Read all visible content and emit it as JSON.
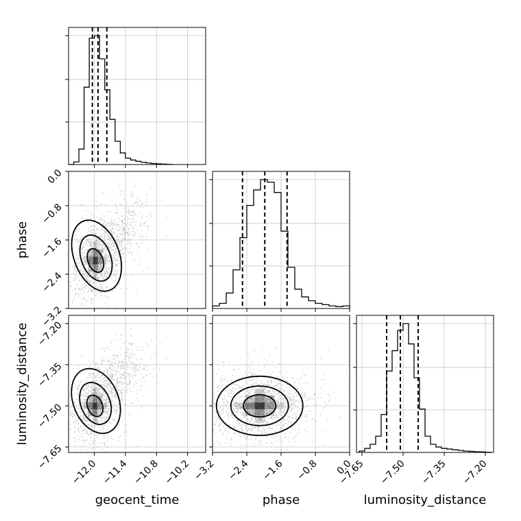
{
  "chart_data": [
    {
      "type": "histogram",
      "panel": "geocent_time-marginal",
      "xparam": "geocent_time",
      "xlim": [
        -12.5,
        -9.85
      ],
      "x_ticks": [
        -12.0,
        -11.4,
        -10.8,
        -10.2
      ],
      "bins": [
        -12.5,
        -12.4,
        -12.3,
        -12.2,
        -12.1,
        -12.0,
        -11.9,
        -11.8,
        -11.7,
        -11.6,
        -11.5,
        -11.4,
        -11.3,
        -11.2,
        -11.1,
        -11.0,
        -10.9,
        -10.8,
        -10.7,
        -10.6,
        -10.5
      ],
      "density": [
        0.0,
        0.02,
        0.12,
        0.6,
        0.98,
        1.0,
        0.82,
        0.58,
        0.35,
        0.18,
        0.09,
        0.05,
        0.035,
        0.025,
        0.018,
        0.012,
        0.008,
        0.005,
        0.003,
        0.001
      ],
      "quantiles": [
        -12.04,
        -11.93,
        -11.76
      ],
      "grid": true
    },
    {
      "type": "histogram",
      "panel": "phase-marginal",
      "xparam": "phase",
      "xlim": [
        -3.2,
        0.0
      ],
      "x_ticks": [
        -3.2,
        -2.4,
        -1.6,
        -0.8,
        0.0
      ],
      "x_tick_labels": [
        "−3.2",
        "−2.4",
        "−1.6",
        "−0.8",
        "0.0"
      ],
      "bins": [
        -3.2,
        -3.04,
        -2.88,
        -2.72,
        -2.56,
        -2.4,
        -2.24,
        -2.08,
        -1.92,
        -1.76,
        -1.6,
        -1.44,
        -1.28,
        -1.12,
        -0.96,
        -0.8,
        -0.64,
        -0.48,
        -0.32,
        -0.16,
        0.0
      ],
      "density": [
        0.02,
        0.04,
        0.12,
        0.3,
        0.55,
        0.8,
        0.92,
        1.0,
        0.98,
        0.9,
        0.6,
        0.32,
        0.15,
        0.09,
        0.06,
        0.04,
        0.03,
        0.02,
        0.015,
        0.02
      ],
      "quantiles": [
        -2.5,
        -1.98,
        -1.46
      ],
      "grid": true
    },
    {
      "type": "histogram",
      "panel": "luminosity_distance-marginal",
      "xparam": "luminosity_distance",
      "xlim": [
        -7.67,
        -7.17
      ],
      "x_ticks": [
        -7.65,
        -7.5,
        -7.35,
        -7.2
      ],
      "x_tick_labels": [
        "−7.65",
        "−7.50",
        "−7.35",
        "−7.20"
      ],
      "bins": [
        -7.66,
        -7.64,
        -7.62,
        -7.6,
        -7.58,
        -7.56,
        -7.54,
        -7.52,
        -7.5,
        -7.48,
        -7.46,
        -7.44,
        -7.42,
        -7.4,
        -7.38,
        -7.36,
        -7.34,
        -7.32,
        -7.3,
        -7.28,
        -7.26,
        -7.24,
        -7.22,
        -7.2,
        -7.18
      ],
      "density": [
        0.01,
        0.03,
        0.06,
        0.12,
        0.28,
        0.6,
        0.75,
        0.9,
        0.95,
        0.8,
        0.55,
        0.32,
        0.12,
        0.06,
        0.04,
        0.03,
        0.025,
        0.02,
        0.015,
        0.01,
        0.008,
        0.005,
        0.004,
        0.002
      ],
      "quantiles": [
        -7.56,
        -7.51,
        -7.445
      ],
      "grid": true
    },
    {
      "type": "scatter-density",
      "panel": "geocent_time-vs-phase",
      "xparam": "geocent_time",
      "yparam": "phase",
      "xlim": [
        -12.5,
        -9.85
      ],
      "ylim": [
        -3.2,
        0.0
      ],
      "center": [
        -11.98,
        -2.08
      ],
      "spread": [
        0.16,
        0.32
      ],
      "tail_towards": [
        -11.2,
        -1.1
      ],
      "contour_levels": 3,
      "grid": true
    },
    {
      "type": "scatter-density",
      "panel": "geocent_time-vs-luminosity_distance",
      "xparam": "geocent_time",
      "yparam": "luminosity_distance",
      "xlim": [
        -12.5,
        -9.85
      ],
      "ylim": [
        -7.67,
        -7.17
      ],
      "center": [
        -11.99,
        -7.5
      ],
      "spread": [
        0.16,
        0.045
      ],
      "tail_towards": [
        -11.2,
        -7.33
      ],
      "contour_levels": 3,
      "grid": true
    },
    {
      "type": "scatter-density",
      "panel": "phase-vs-luminosity_distance",
      "xparam": "phase",
      "yparam": "luminosity_distance",
      "xlim": [
        -3.2,
        0.0
      ],
      "ylim": [
        -7.67,
        -7.17
      ],
      "center": [
        -2.1,
        -7.5
      ],
      "spread": [
        0.42,
        0.045
      ],
      "contour_levels": 3,
      "grid": true
    }
  ],
  "axes": {
    "geocent_time": {
      "label": "geocent_time",
      "ticks": [
        -12.0,
        -11.4,
        -10.8,
        -10.2
      ],
      "tick_labels": [
        "−12.0",
        "−11.4",
        "−10.8",
        "−10.2"
      ]
    },
    "phase": {
      "label": "phase",
      "ticks_y": [
        0.0,
        -0.8,
        -1.6,
        -2.4,
        -3.2
      ],
      "tick_labels_y": [
        "0.0",
        "−0.8",
        "−1.6",
        "−2.4",
        "−3.2"
      ],
      "ticks_x": [
        -3.2,
        -2.4,
        -1.6,
        -0.8,
        0.0
      ],
      "tick_labels_x": [
        "−3.2",
        "−2.4",
        "−1.6",
        "−0.8",
        "0.0"
      ]
    },
    "luminosity_distance": {
      "label": "luminosity_distance",
      "ticks_y": [
        -7.2,
        -7.35,
        -7.5,
        -7.65
      ],
      "tick_labels_y": [
        "−7.20",
        "−7.35",
        "−7.50",
        "−7.65"
      ],
      "ticks_x": [
        -7.65,
        -7.5,
        -7.35,
        -7.2
      ],
      "tick_labels_x": [
        "−7.65",
        "−7.50",
        "−7.35",
        "−7.20"
      ]
    }
  },
  "colors": {
    "line": "#000000",
    "grid": "#c8c8c8",
    "points": "#b0b0b0",
    "density": "#000000"
  }
}
